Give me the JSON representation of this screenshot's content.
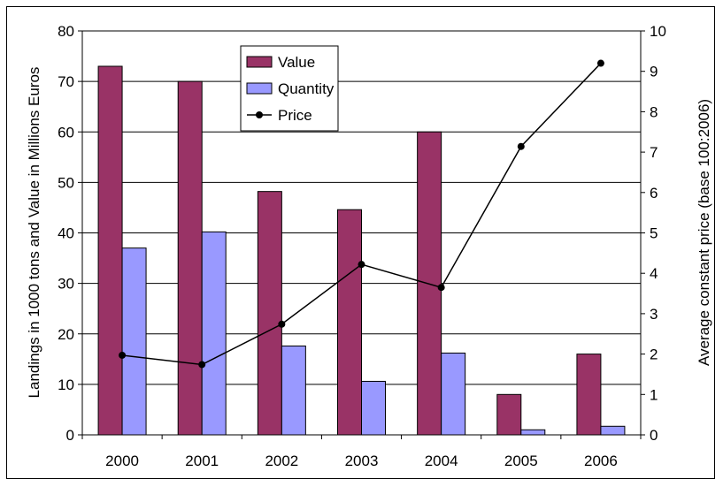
{
  "chart_data": {
    "type": "bar",
    "categories": [
      "2000",
      "2001",
      "2002",
      "2003",
      "2004",
      "2005",
      "2006"
    ],
    "series": [
      {
        "name": "Value",
        "type": "bar",
        "axis": "left",
        "color": "#993366",
        "values": [
          73,
          70,
          48.2,
          44.6,
          60,
          8,
          16
        ]
      },
      {
        "name": "Quantity",
        "type": "bar",
        "axis": "left",
        "color": "#9999ff",
        "values": [
          37,
          40.2,
          17.6,
          10.6,
          16.2,
          1,
          1.7
        ]
      },
      {
        "name": "Price",
        "type": "line",
        "axis": "right",
        "color": "#000000",
        "marker": "circle",
        "values": [
          1.97,
          1.74,
          2.74,
          4.22,
          3.65,
          7.14,
          9.2
        ]
      }
    ],
    "ylabel": "Landings in 1000 tons and Value in Millions Euros",
    "y2label": "Average constant price (base 100:2006)",
    "ylim": [
      0,
      80
    ],
    "yticks": [
      "0",
      "10",
      "20",
      "30",
      "40",
      "50",
      "60",
      "70",
      "80"
    ],
    "y2lim": [
      0,
      10
    ],
    "y2ticks": [
      "0",
      "1",
      "2",
      "3",
      "4",
      "5",
      "6",
      "7",
      "8",
      "9",
      "10"
    ],
    "grid": true,
    "legend": "top-center"
  }
}
